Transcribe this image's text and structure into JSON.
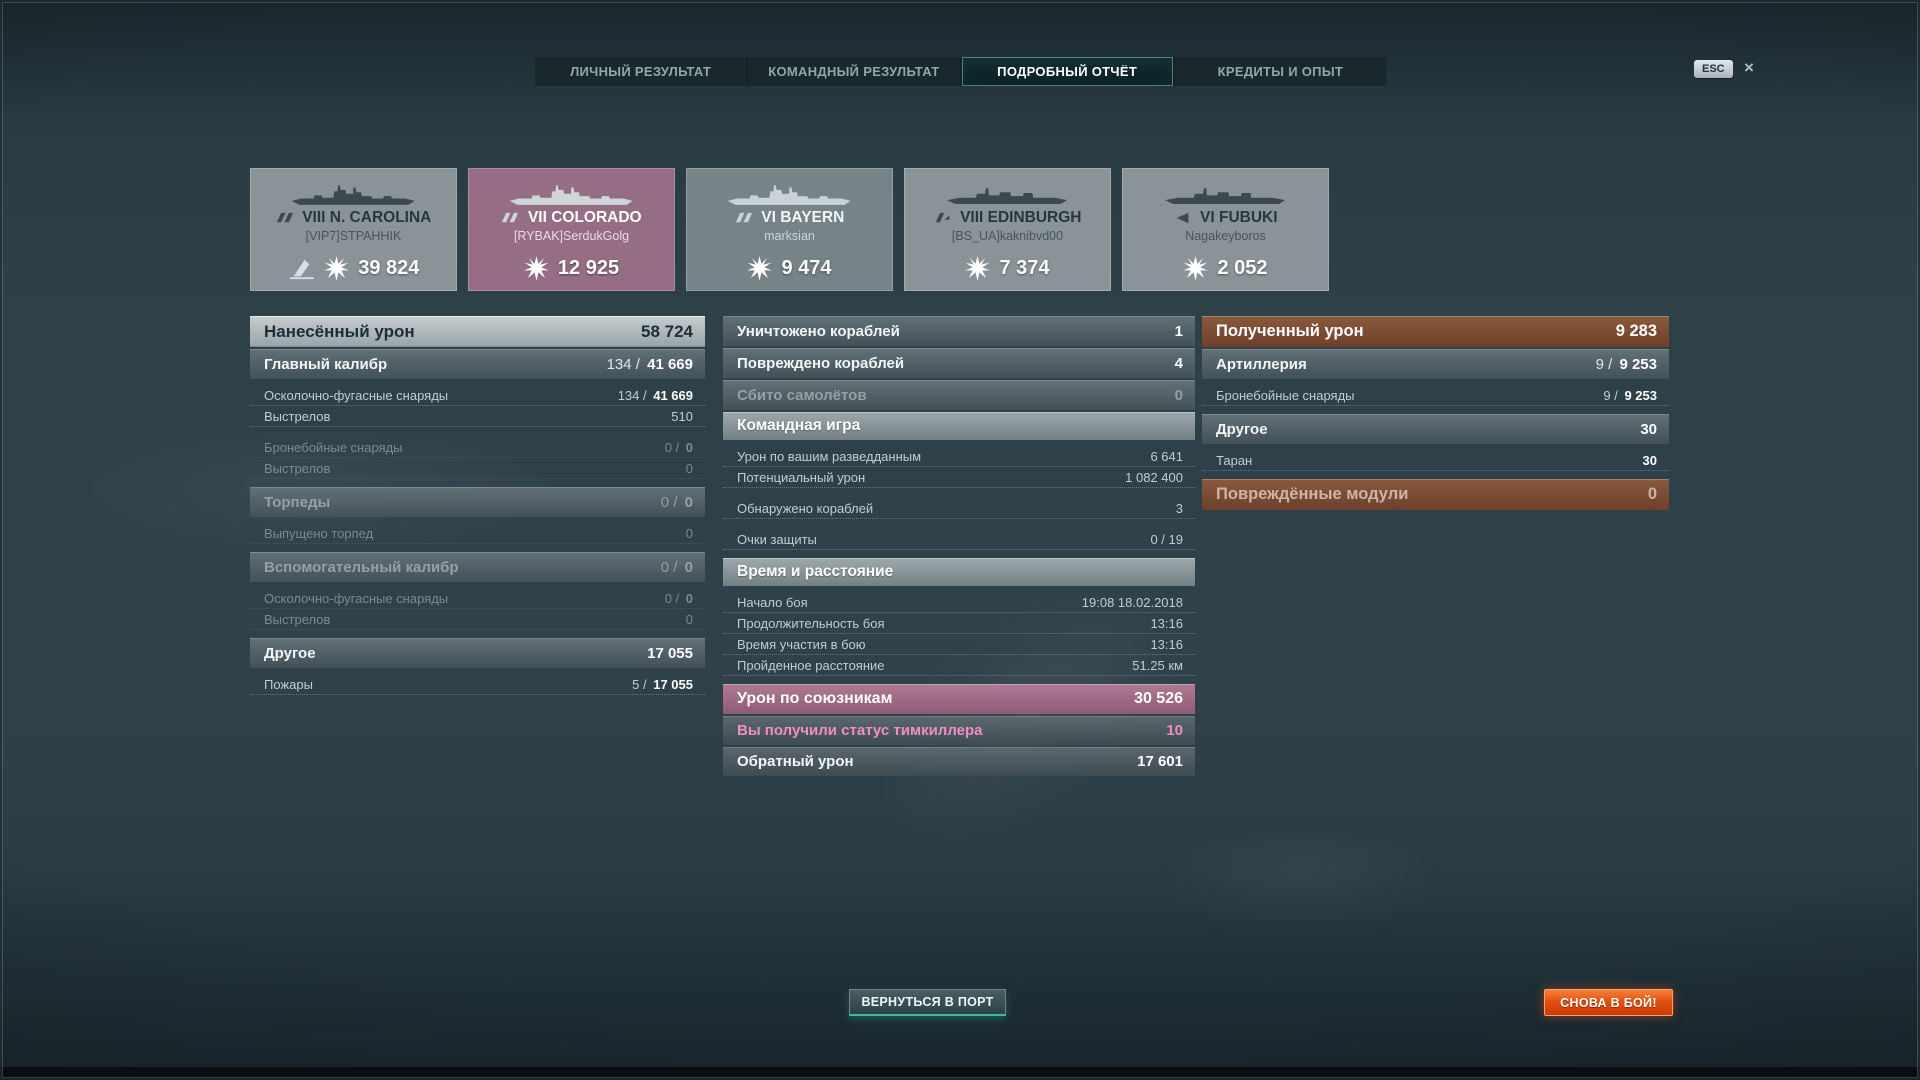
{
  "window": {
    "esc_label": "ESC",
    "close_icon": "×"
  },
  "colors": {
    "background": "#2e4048",
    "tab_active_border": "#4e7f82",
    "header_silver": "#a8b2b4",
    "bar_gray": "#5a6a70",
    "pink_bar": "#b07a93",
    "pink_text": "#f18cc4",
    "brown_bar": "#8a5a3e",
    "port_button_teal": "#36b9a6",
    "battle_button_orange": "#e4520e",
    "card_pink": "#9e718a",
    "card_gray": "#97a1a4"
  },
  "tabs": [
    {
      "label": "ЛИЧНЫЙ РЕЗУЛЬТАТ",
      "active": false
    },
    {
      "label": "КОМАНДНЫЙ РЕЗУЛЬТАТ",
      "active": false
    },
    {
      "label": "ПОДРОБНЫЙ ОТЧЁТ",
      "active": true
    },
    {
      "label": "КРЕДИТЫ И ОПЫТ",
      "active": false
    }
  ],
  "cards": [
    {
      "ship_class": "battleship",
      "name": "VIII N. CAROLINA",
      "player": "[VIP7]STPAHHIK",
      "value": "39 824",
      "sunk": true,
      "variant": "gray-dark"
    },
    {
      "ship_class": "battleship",
      "name": "VII COLORADO",
      "player": "[RYBAK]SerdukGolg",
      "value": "12 925",
      "sunk": false,
      "variant": "pink"
    },
    {
      "ship_class": "battleship",
      "name": "VI BAYERN",
      "player": "marksian",
      "value": "9 474",
      "sunk": false,
      "variant": "gray-light"
    },
    {
      "ship_class": "cruiser",
      "name": "VIII EDINBURGH",
      "player": "[BS_UA]kaknibvd00",
      "value": "7 374",
      "sunk": false,
      "variant": "gray-dark"
    },
    {
      "ship_class": "destroyer",
      "name": "VI FUBUKI",
      "player": "Nagakeyboros",
      "value": "2 052",
      "sunk": false,
      "variant": "gray-dark"
    }
  ],
  "columns": {
    "left": [
      {
        "type": "header",
        "label": "Нанесённый урон",
        "val": "58 724"
      },
      {
        "type": "sub",
        "label": "Главный калибр",
        "pre": "134 / ",
        "val": "41 669"
      },
      {
        "type": "row",
        "label": "Осколочно-фугасные снаряды",
        "pre": "134 / ",
        "val": "41 669"
      },
      {
        "type": "row",
        "label": "Выстрелов",
        "pre": "510"
      },
      {
        "type": "row",
        "label": "Бронебойные снаряды",
        "pre": "0 / ",
        "val": "0",
        "dim": true,
        "gap": true
      },
      {
        "type": "row",
        "label": "Выстрелов",
        "pre": "0",
        "dim": true
      },
      {
        "type": "sub",
        "label": "Торпеды",
        "pre": "0 / ",
        "val": "0",
        "dim": true
      },
      {
        "type": "row",
        "label": "Выпущено торпед",
        "pre": "0",
        "dim": true
      },
      {
        "type": "sub",
        "label": "Вспомогательный калибр",
        "pre": "0 / ",
        "val": "0",
        "dim": true
      },
      {
        "type": "row",
        "label": "Осколочно-фугасные снаряды",
        "pre": "0 / ",
        "val": "0",
        "dim": true
      },
      {
        "type": "row",
        "label": "Выстрелов",
        "pre": "0",
        "dim": true
      },
      {
        "type": "sub",
        "label": "Другое",
        "val": "17 055"
      },
      {
        "type": "row",
        "label": "Пожары",
        "pre": "5 / ",
        "val": "17 055"
      }
    ],
    "mid": [
      {
        "type": "sub",
        "label": "Уничтожено кораблей",
        "val": "1"
      },
      {
        "type": "sub",
        "label": "Повреждено кораблей",
        "val": "4"
      },
      {
        "type": "sub",
        "label": "Сбито самолётов",
        "val": "0",
        "dim": true
      },
      {
        "type": "ghead",
        "label": "Командная игра"
      },
      {
        "type": "row",
        "label": "Урон по вашим разведданным",
        "pre": "6 641"
      },
      {
        "type": "row",
        "label": "Потенциальный урон",
        "pre": "1 082 400"
      },
      {
        "type": "row",
        "label": "Обнаружено кораблей",
        "pre": "3",
        "gap": true
      },
      {
        "type": "row",
        "label": "Очки защиты",
        "pre": "0 / 19",
        "gap": true
      },
      {
        "type": "ghead",
        "label": "Время и расстояние"
      },
      {
        "type": "row",
        "label": "Начало боя",
        "pre": "19:08  18.02.2018"
      },
      {
        "type": "row",
        "label": "Продолжительность боя",
        "pre": "13:16"
      },
      {
        "type": "row",
        "label": "Время участия в бою",
        "pre": "13:16"
      },
      {
        "type": "row",
        "label": "Пройденное расстояние",
        "pre": "51.25 км"
      },
      {
        "type": "pink",
        "label": "Урон по союзникам",
        "val": "30 526"
      },
      {
        "type": "psub",
        "label": "Вы получили статус тимкиллера",
        "val": "10",
        "pinktext": true
      },
      {
        "type": "psub",
        "label": "Обратный урон",
        "val": "17 601"
      }
    ],
    "right": [
      {
        "type": "brown",
        "label": "Полученный урон",
        "val": "9 283"
      },
      {
        "type": "sub",
        "label": "Артиллерия",
        "pre": "9 / ",
        "val": "9 253"
      },
      {
        "type": "row",
        "label": "Бронебойные снаряды",
        "pre": "9 / ",
        "val": "9 253"
      },
      {
        "type": "sub",
        "label": "Другое",
        "val": "30"
      },
      {
        "type": "row",
        "label": "Таран",
        "val": "30"
      },
      {
        "type": "brown",
        "label": "Повреждённые модули",
        "val": "0",
        "dim": true
      }
    ]
  },
  "buttons": {
    "port": "ВЕРНУТЬСЯ В ПОРТ",
    "battle": "СНОВА В БОЙ!"
  }
}
